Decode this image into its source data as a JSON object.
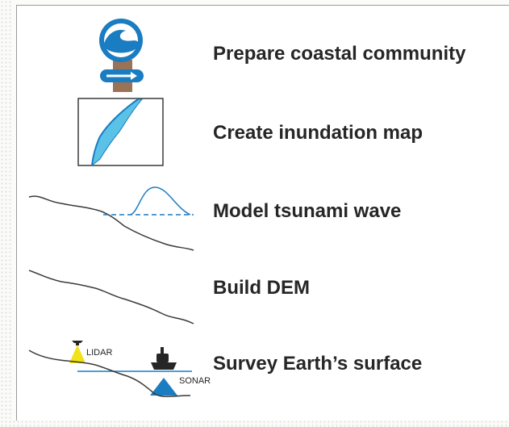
{
  "steps": [
    {
      "icon": "tsunami-warning-sign-icon",
      "label": "Prepare coastal community"
    },
    {
      "icon": "inundation-map-icon",
      "label": "Create inundation map"
    },
    {
      "icon": "tsunami-wave-profile-icon",
      "label": "Model tsunami wave"
    },
    {
      "icon": "terrain-profile-icon",
      "label": "Build DEM"
    },
    {
      "icon": "survey-lidar-sonar-icon",
      "label": "Survey Earth’s surface"
    }
  ],
  "survey_tags": {
    "lidar": "LIDAR",
    "sonar": "SONAR"
  },
  "colors": {
    "accent_blue": "#1a7cc1",
    "water_blue": "#5bc2e7",
    "lidar_yellow": "#f2e21a",
    "post_brown": "#9a7357"
  }
}
